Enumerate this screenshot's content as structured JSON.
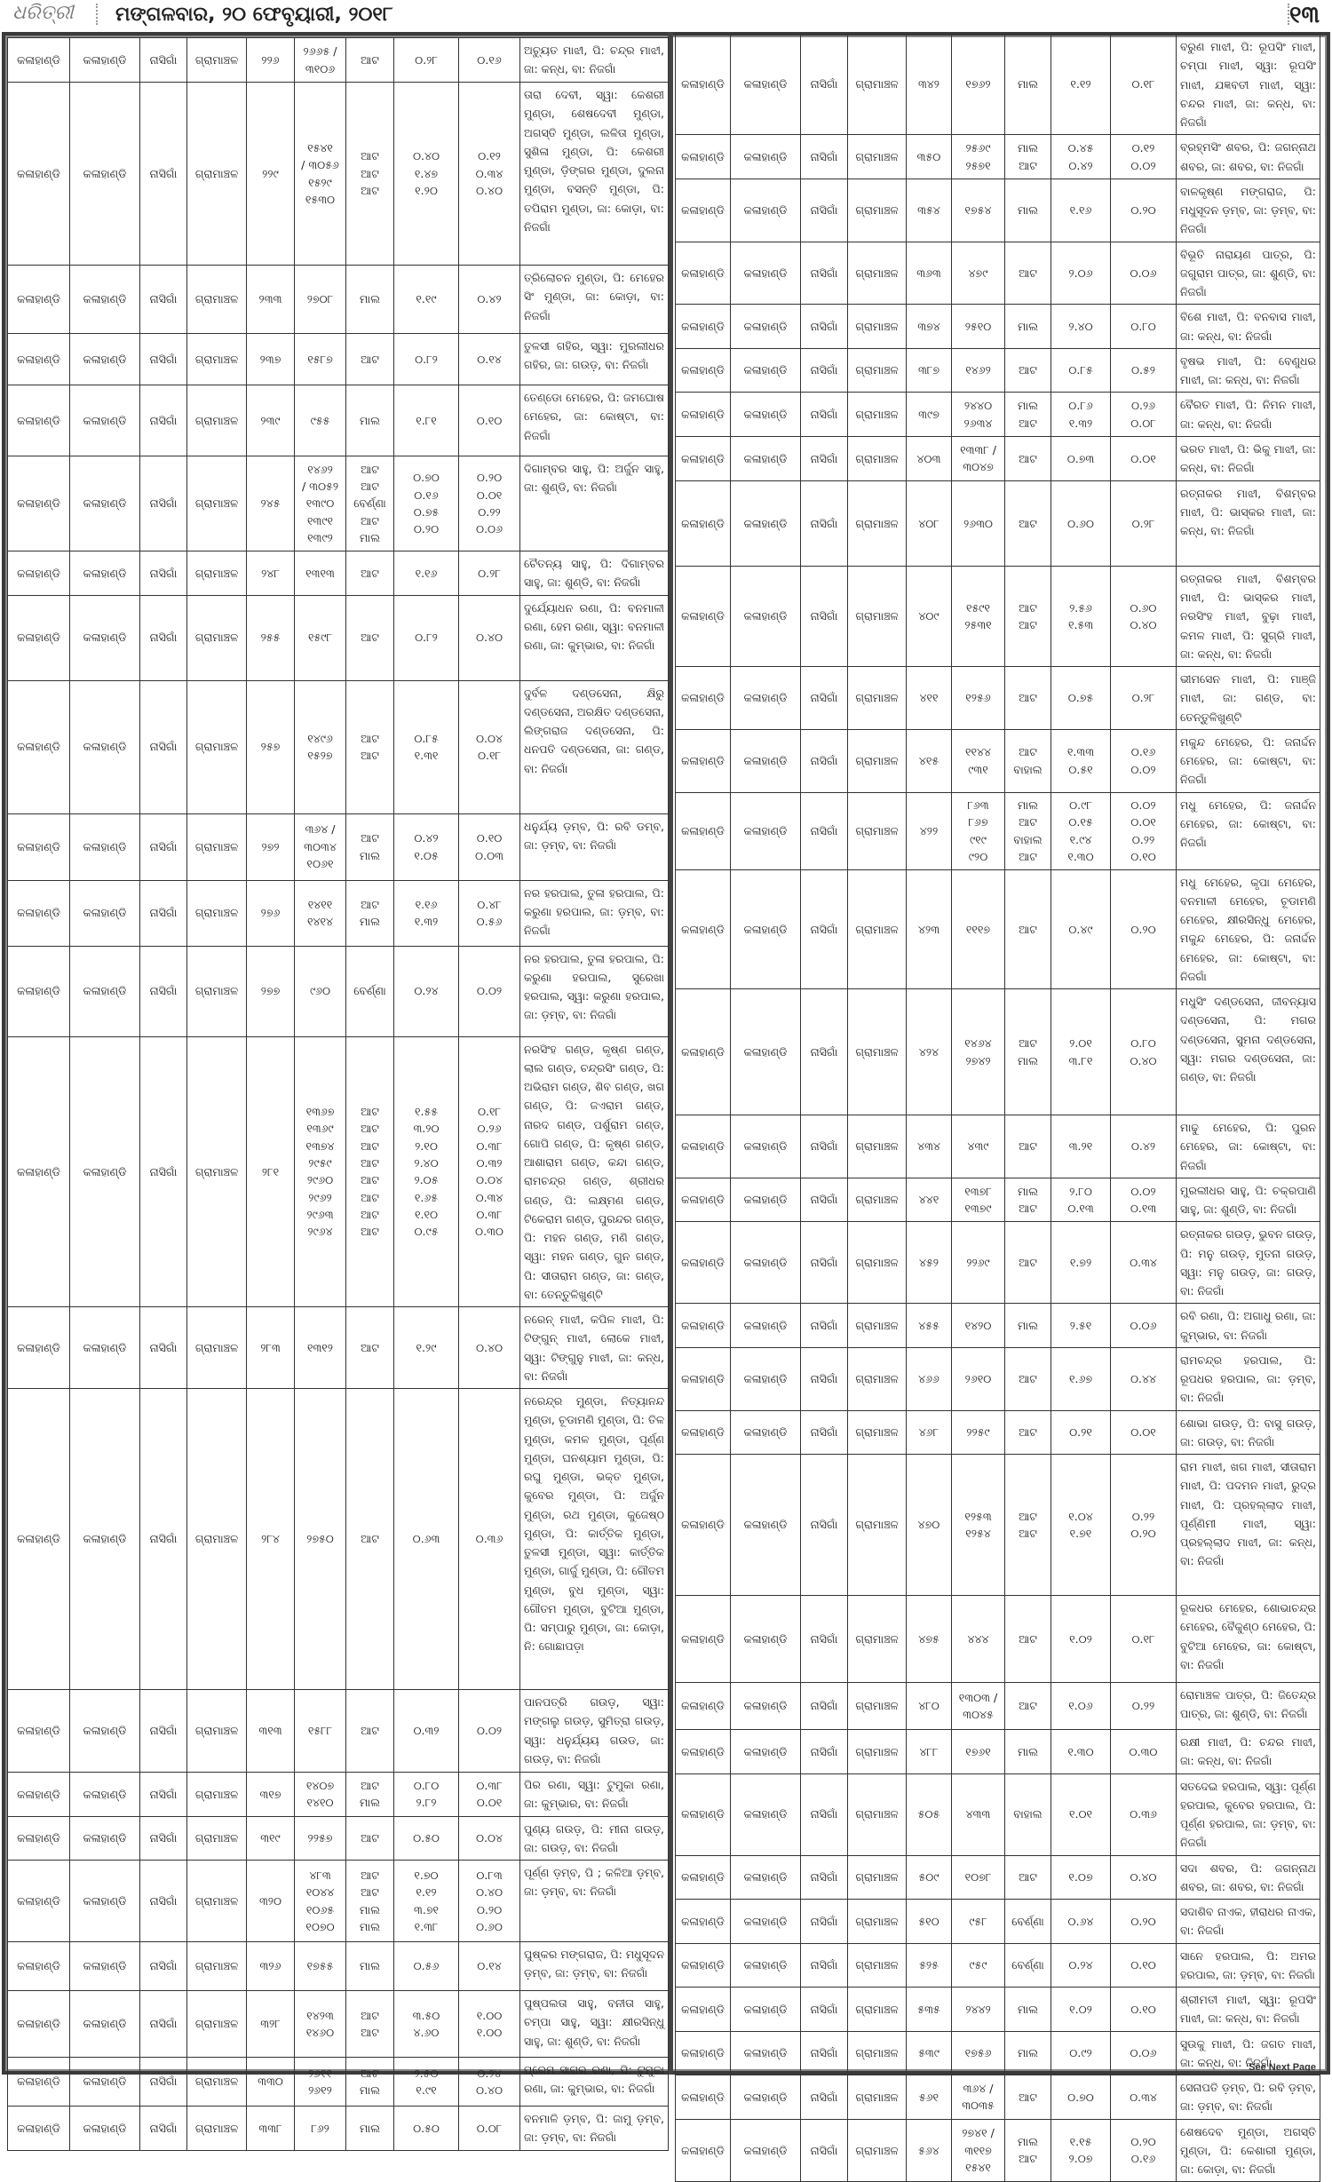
{
  "header": {
    "logo": "ଧରିତ୍ରୀ",
    "date": "ମଙ୍ଗଳବାର, ୨୦ ଫେବୃୟାରୀ, ୨୦୧୮",
    "page_number": "୧୩"
  },
  "footer": {
    "see_next_page": "See Next Page"
  },
  "common": {
    "district": "କଳାହାଣ୍ଡି",
    "district2": "କଳାହାଣ୍ଡି",
    "tehsil": "ନାସିଗାଁ",
    "mouza": "ଗ୍ରାମାଞ୍ଚଳ"
  },
  "left_table": [
    {
      "khata": "୨୨୬",
      "plot": "୨୬୬୫ /\n୩୧୦୬",
      "kisam": "ଆଟ",
      "area": "୦.୨୮",
      "acquired": "୦.୧୬",
      "names": "ଅଚ୍ୟୁତ ମାଝୀ, ପି: ଚନ୍ଦ୍ର ମାଝୀ, ଜା: କନ୍ଧ, ବା: ନିଜଗାଁ"
    },
    {
      "khata": "୨୨୯",
      "plot": "୧୫୪୧\n/ ୩୦୫୬\n୧୫୨୯\n୧୫୩୦",
      "kisam": "ଆଟ\nଆଟ\nଆଟ",
      "area": "୦.୪୦\n୧.୪୭\n୧.୨୦",
      "acquired": "୦.୧୨\n୦.୩୪\n୦.୪୦",
      "names": "ତାରା ଦେବୀ, ସ୍ୱା: କେଶରୀ ମୁଣ୍ଡା, ଶେଷଦେବୀ ମୁଣ୍ଡା, ଅଗସ୍ତି ମୁଣ୍ଡା, ଲଳିତା ମୁଣ୍ଡା, ସୁଶିଳା ମୁଣ୍ଡା, ପି: କେଶରୀ ମୁଣ୍ଡା, ଡ଼ିଙ୍ଗର ମୁଣ୍ଡା, ଦୁଲନା ମୁଣ୍ଡା, ବସନ୍ତି ମୁଣ୍ଡା, ପି: ତପିରାମ ମୁଣ୍ଡା, ଜା: କୋଡ଼ା, ବା: ନିଜଗାଁ"
    },
    {
      "khata": "୨୩୩",
      "plot": "୨୭୦୮",
      "kisam": "ମାଲ",
      "area": "୧.୧୯",
      "acquired": "୦.୪୨",
      "names": "ତ୍ରିଲୋଚନ ମୁଣ୍ଡା, ପି: ମେହେର ସିଂ ମୁଣ୍ଡା, ଜା: କୋଡ଼ା, ବା: ନିଜଗାଁ"
    },
    {
      "khata": "୨୩୭",
      "plot": "୧୫୮୭",
      "kisam": "ଆଟ",
      "area": "୦.୮୨",
      "acquired": "୦.୧୪",
      "names": "ତୁଳସୀ ଗହିର, ସ୍ୱା: ମୁରଲୀଧର ଗହିର, ଜା: ଗଉଡ଼, ବା: ନିଜଗାଁ"
    },
    {
      "khata": "୨୩୯",
      "plot": "୯୫୫",
      "kisam": "ମାଲ",
      "area": "୧.୮୧",
      "acquired": "୦.୧୦",
      "names": "ତେଣ୍ଡୋ ମେହେର, ପି: ଜମଘୋଷ ମେହେର, ଜା: କୋଷ୍ଟା, ବା: ନିଜଗାଁ"
    },
    {
      "khata": "୨୪୫",
      "plot": "୧୪୬୨\n/ ୩୦୫୨\n୧୩୯୦\n୧୩୯୧\n୧୩୯୨",
      "kisam": "ଆଟ\nଆଟ\nବେର୍ଣ୍ଣା\nଆଟ\nମାଲ",
      "area": "୦.୭୦\n୦.୧୬\n୦.୭୫\n୦.୨୦",
      "acquired": "୦.୨୦\n୦.୦୧\n୦.୨୨\n୦.୦୬",
      "names": "ଦିଗାମ୍ବର ସାହୁ, ପି: ଅର୍ଜୁନ ସାହୁ, ଜା: ଶୁଣ୍ଡି, ବା: ନିଜଗାଁ"
    },
    {
      "khata": "୨୪୮",
      "plot": "୧୩୧୩",
      "kisam": "ଆଟ",
      "area": "୧.୧୬",
      "acquired": "୦.୨୮",
      "names": "ଚୈତନ୍ୟ ସାହୁ, ପି: ଦିଗାମ୍ବର ସାହୁ, ଜା: ଶୁଣ୍ଡି, ବା: ନିଜଗାଁ"
    },
    {
      "khata": "୨୫୫",
      "plot": "୧୫୯୮",
      "kisam": "ଆଟ",
      "area": "୦.୮୨",
      "acquired": "୦.୪୦",
      "names": "ଦୁର୍ଯ୍ୟୋଧନ ରଣା, ପି: ବନମାଳୀ ରଣା, ହେମ ରଣା, ସ୍ୱା: ବନମାଳୀ ରଣା, ଜା: କୁମ୍ଭାର, ବା: ନିଜଗାଁ"
    },
    {
      "khata": "୨୫୭",
      "plot": "୧୪୯୬\n୧୫୨୭",
      "kisam": "ଆଟ\nଆଟ",
      "area": "୦.୮୫\n୧.୩୧",
      "acquired": "୦.୦୪\n୦.୧୮",
      "names": "ଦୁର୍ବଳ ଦଣ୍ଡସେନା, କ୍ଷିରୁ ଦଣ୍ଡସେନା, ଅରକ୍ଷିତ ଦଣ୍ଡସେନା, ଲିଙ୍ଗରାଜ ଦଣ୍ଡସେନା, ପି: ଧନପତି ଦଣ୍ଡସେନା, ଜା: ଗଣ୍ଡ, ବା: ନିଜଗାଁ"
    },
    {
      "khata": "୨୭୨",
      "plot": "୩୬୪ /\n୩୦୩୪\n୧୦୬୧",
      "kisam": "ଆଟ\nମାଲ",
      "area": "୦.୪୨\n୧.୦୫",
      "acquired": "୦.୧୦\n୦.୦୩",
      "names": "ଧନୁର୍ଯ୍ୟ ଡ଼ମ୍ବ, ପି: ରବି ଡମ୍ବ, ଜା: ଡ଼ମ୍ବ, ବା: ନିଜଗାଁ"
    },
    {
      "khata": "୨୭୬",
      "plot": "୧୪୧୧\n୧୪୧୪",
      "kisam": "ଆଟ\nମାଲ",
      "area": "୧.୧୬\n୧.୩୨",
      "acquired": "୦.୪୮\n୦.୫୬",
      "names": "ନର ହରପାଲ, ତୁଳା ହରପାଲ, ପି: କରୁଣା ହରପାଲ, ଜା: ଡ଼ମ୍ବ, ବା: ନିଜଗାଁ"
    },
    {
      "khata": "୨୭୭",
      "plot": "୯୬୦",
      "kisam": "ବେର୍ଣ୍ଣା",
      "area": "୦.୨୪",
      "acquired": "୦.୦୨",
      "names": "ନର ହରପାଲ, ତୁଳା ହରପାଲ, ପି: କରୁଣା ହରପାଲ, ସୁରେଖା ହରପାଲ, ସ୍ୱା: କରୁଣା ହରପାଲ, ଜା: ଡ଼ମ୍ବ, ବା: ନିଜଗାଁ"
    },
    {
      "khata": "୨୮୧",
      "plot": "୧୩୬୭\n୧୩୬୯\n୧୩୭୪\n୨୯୫୯\n୨୯୬୦\n୨୯୬୨\n୨୯୬୩\n୨୯୬୪",
      "kisam": "ଆଟ\nଆଟ\nଆଟ\nଆଟ\nଆଟ\nଆଟ\nଆଟ\nଆଟ",
      "area": "୧.୫୫\n୩.୨୦\n୨.୧୦\n୨.୪୦\n୨.୦୫\n୧.୬୫\n୧.୧୦\n୦.୯୫",
      "acquired": "୦.୧୮\n୦.୨୬\n୦.୩୮\n୦.୩୨\n୦.୦୪\n୦.୩୪\n୦.୩୮\n୦.୩୦",
      "names": "ନରସିଂହ ଗଣ୍ଡ, କୃଷ୍ଣ ଗଣ୍ଡ, ଲାଲ ଗଣ୍ଡ, ଚନ୍ଦ୍ରସିଂ ଗଣ୍ଡ, ପି: ଅଭିରାମ ଗଣ୍ଡ, ଶିବ ଗଣ୍ଡ, ଖଗ ଗଣ୍ଡ, ପି: ଜଏରାମ ଗଣ୍ଡ, ନାରଦ ଗଣ୍ଡ, ପର୍ଶୁରାମ ଗଣ୍ଡ, ଗୋପି ଗଣ୍ଡ, ପି: କୃଷ୍ଣ ଗଣ୍ଡ, ଆଶାରାମ ଗଣ୍ଡ, କନ୍ଦା ଗଣ୍ଡ, ରାମଚନ୍ଦ୍ର ଗଣ୍ଡ, ଶ୍ରୀଧର ଗଣ୍ଡ, ପି: ଲକ୍ଷ୍ମଣ ଗଣ୍ଡ, ଟିକେରାମ ଗଣ୍ଡ, ପୁରନ୍ଦର ଗଣ୍ଡ, ପି: ମହନ ଗଣ୍ଡ, ମଣି ଗଣ୍ଡ, ସ୍ୱା: ମହନ ଗଣ୍ଡ, ଗୁନ ଗଣ୍ଡ, ପି: ସୀତାରାମ ଗଣ୍ଡ, ଜା: ଗଣ୍ଡ, ବା: ତେନ୍ତୁଳିଖୁଣ୍ଟି"
    },
    {
      "khata": "୨୮୩",
      "plot": "୧୩୧୨",
      "kisam": "ଆଟ",
      "area": "୧.୨୯",
      "acquired": "୦.୪୦",
      "names": "ନରେନ୍ ମାଝୀ, କପିଳ ମାଝୀ, ପି: ଟିଙ୍ଗୁନ୍ ମାଝୀ, ଲୋକେ ମାଝୀ, ସ୍ୱା: ଟିଙ୍ଗୁନୁ ମାଝୀ, ଜା: କନ୍ଧ, ବା: ନିଜଗାଁ"
    },
    {
      "khata": "୨୮୪",
      "plot": "୨୭୫୦",
      "kisam": "ଆଟ",
      "area": "୦.୬୩",
      "acquired": "୦.୩୬",
      "names": "ନରେନ୍ଦ୍ର ମୁଣ୍ଡା, ନିତ୍ୟାନନ୍ଦ ମୁଣ୍ଡା, ଚୂଡାମଣି ମୁଣ୍ଡା, ପି: ତିଳ ମୁଣ୍ଡା, କମଳ ମୁଣ୍ଡା, ପୂର୍ଣ୍ଣ ମୁଣ୍ଡା, ଘନଶ୍ୟାମ ମୁଣ୍ଡା, ପି: ରଘୁ ମୁଣ୍ଡା, ଭକ୍ତ ମୁଣ୍ଡା, କୁବେର ମୁଣ୍ଡା, ପି: ଅର୍ଜୁନ ମୁଣ୍ଡା, ରଥ ମୁଣ୍ଡା, କୁଜେଷ୍ଠ ମୁଣ୍ଡା, ପି: କାର୍ତ୍ତିକ ମୁଣ୍ଡା, ତୁଳସୀ ମୁଣ୍ଡା, ସ୍ୱା: କାର୍ତ୍ତିକ ମୁଣ୍ଡା, ଗାର୍ଜୁ ମୁଣ୍ଡା, ପି: ଗୌତମ ମୁଣ୍ଡା, ବୁଧ ମୁଣ୍ଡା, ସ୍ୱା: ଗୌତମ ମୁଣ୍ଡା, ବୁଟିଆ ମୁଣ୍ଡା, ପି: ସମ୍ପାରୁ ମୁଣ୍ଡା, ଜା: କୋଡ଼ା, ନି: ଗୋଛାପଡ଼ା"
    },
    {
      "khata": "୩୧୩",
      "plot": "୧୫୮୮",
      "kisam": "ଆଟ",
      "area": "୦.୩୨",
      "acquired": "୦.୦୨",
      "names": "ପାନପତ୍ରି ଗଉଡ଼, ସ୍ୱା: ମଙ୍ଗଲୁ ଗଉଡ଼, ସୁମିତ୍ରା ଗଉଡ଼, ସ୍ୱା: ଧନୁର୍ଯ୍ୟୟ ଗଉଡ, ଜା: ଗଉଡ଼, ବା: ନିଜଗାଁ"
    },
    {
      "khata": "୩୧୭",
      "plot": "୧୪୦୭\n୧୪୧୦",
      "kisam": "ଆଟ\nମାଲ",
      "area": "୦.୮୦\n୨.୮୨",
      "acquired": "୦.୩୮\n୦.୦୧",
      "names": "ପିର ରଣା, ସ୍ୱା: ଟୁମୁକା ରଣା, ଜା: କୁମ୍ଭାର, ବା: ନିଜଗାଁ"
    },
    {
      "khata": "୩୧୯",
      "plot": "୨୨୫୭",
      "kisam": "ଆଟ",
      "area": "୦.୫୦",
      "acquired": "୦.୦୪",
      "names": "ପୁଣ୍ୟ ଗଉଡ଼, ପି: ମୀନା ଗଉଡ଼, ଜା: ଗଉଡ଼, ବା: ନିଜଗାଁ"
    },
    {
      "khata": "୩୨୦",
      "plot": "୪୮୩\n୧୦୪୪\n୧୦୬୫\n୧୦୭୦",
      "kisam": "ଆଟ\nଆଟ\nମାଲ\nମାଲ",
      "area": "୧.୭୦\n୧.୧୨\n୩.୭୧\n୧.୩୮",
      "acquired": "୦.୮୩\n୦.୪୦\n୦.୨୦\n୦.୬୦",
      "names": "ପୂର୍ଣ୍ଣ ଡ଼ମ୍ବ, ପି ; କଳିଆ ଡ଼ମ୍ବ, ଜା: ଡ଼ମ୍ବ, ବା: ନିଜଗାଁ"
    },
    {
      "khata": "୩୨୬",
      "plot": "୧୭୫୫",
      "kisam": "ମାଲ",
      "area": "୦.୫୬",
      "acquired": "୦.୧୪",
      "names": "ପୁଷ୍କର ମଙ୍ଗରାଜ, ପି: ମଧୁସୂଦନ ଡ଼ମ୍ବ, ଜା: ଡ଼ମ୍ବ, ବା: ନିଜଗାଁ"
    },
    {
      "khata": "୩୨୮",
      "plot": "୧୪୨୩\n୧୪୬୦",
      "kisam": "ଆଟ\nଆଟ",
      "area": "୩.୫୦\n୪.୬୦",
      "acquired": "୧.୦୦\n୧.୦୦",
      "names": "ପୁଷ୍ପଲତା ସାହୁ, ବନୀତା ସାହୁ, ଚମ୍ପା ସାହୁ, ସ୍ୱା: କ୍ଷୀରସିନ୍ଧୁ ସାହୁ, ଜା: ଶୁଣ୍ଡି, ବା: ନିଜଗାଁ"
    },
    {
      "khata": "୩୩୦",
      "plot": "୨୬୧୧\n୨୬୧୨",
      "kisam": "ଆଟ\nମାଲ",
      "area": "୨.୫୦\n୧.୯୧",
      "acquired": "୦.୨୪\n୦.୪୦",
      "names": "ପ୍ରେମ ସାଗର ରଣା, ପି: ଟୁମୁକା ରଣା, ଜା: କୁମ୍ଭାର, ବା: ନିଜଗାଁ"
    },
    {
      "khata": "୩୩୮",
      "plot": "୮୬୨",
      "kisam": "ମାଲ",
      "area": "୦.୫୦",
      "acquired": "୦.୦୮",
      "names": "ବନମାଳି ଡ଼ମ୍ବ, ପି: ଜାମୁ ଡ଼ମ୍ବ, ଜା: ଡ଼ମ୍ବ, ବା: ନିଜଗାଁ"
    }
  ],
  "right_table": [
    {
      "khata": "୩୪୨",
      "plot": "୧୭୬୨",
      "kisam": "ମାଲ",
      "area": "୧.୧୨",
      "acquired": "୦.୧୮",
      "names": "ବରୁଣ ମାଝୀ, ପି: ରୂପସିଂ ମାଝୀ, ଚମ୍ପା ମାଝୀ, ସ୍ୱା: ରୂପସିଂ ମାଝୀ, ଯଜ୍ଞବତୀ ମାଝୀ, ସ୍ୱା: ଚନ୍ଦର ମାଝୀ, ଜା: କନ୍ଧ, ବା: ନିଜଗାଁ"
    },
    {
      "khata": "୩୫୦",
      "plot": "୨୫୬୯\n୨୫୭୧",
      "kisam": "ମାଲ\nଆଟ",
      "area": "୦.୪୫\n୦.୪୨",
      "acquired": "୦.୧୨\n୦.୦୨",
      "names": "ବ୍ରହ୍ମସିଂ ଶବର, ପି: ଜଗନ୍ନାଥ ଶବର, ଜା: ଶବର, ବା: ନିଜଗାଁ"
    },
    {
      "khata": "୩୫୪",
      "plot": "୧୭୫୪",
      "kisam": "ମାଲ",
      "area": "୧.୧୬",
      "acquired": "୦.୨୦",
      "names": "ବାଳକୃଷ୍ଣ ମଙ୍ଗରାଜ, ପି: ମଧୁସୂଦନ ଡ଼ମ୍ବ, ଜା: ଡ଼ମ୍ବ, ବା: ନିଜଗାଁ"
    },
    {
      "khata": "୩୬୩",
      "plot": "୪୭୯",
      "kisam": "ଆଟ",
      "area": "୨.୦୬",
      "acquired": "୦.୦୬",
      "names": "ବିଭୂତି ନାରାୟଣ ପାତ୍ର, ପି: ଜଗୁରାମ ପାତ୍ର, ଜା: ଶୁଣ୍ଡି, ବା: ନିଜଗାଁ"
    },
    {
      "khata": "୩୭୪",
      "plot": "୨୫୧୦",
      "kisam": "ମାଲ",
      "area": "୨.୪୦",
      "acquired": "୦.୮୦",
      "names": "ବିଶେ ମାଝୀ, ପି: ବନବାସ ମାଝୀ, ଜା: କନ୍ଧ, ବା: ନିଜଗାଁ"
    },
    {
      "khata": "୩୮୭",
      "plot": "୧୪୬୨",
      "kisam": "ଆଟ",
      "area": "୦.୮୫",
      "acquired": "୦.୫୨",
      "names": "ବୃଷଭ ମାଝୀ, ପି: ବେଣୁଧର ମାଝୀ, ଜା: କନ୍ଧ, ବା: ନିଜଗାଁ"
    },
    {
      "khata": "୩୯୭",
      "plot": "୨୪୪୦\n୨୬୩୪",
      "kisam": "ମାଲ\nଆଟ",
      "area": "୦.୮୬\n୧.୩୨",
      "acquired": "୦.୨୬\n୦.୦୮",
      "names": "ବୈରତ ମାଝୀ, ପି: ନିମନ ମାଝୀ, ଜା: କନ୍ଧ, ବା: ନିଜଗାଁ"
    },
    {
      "khata": "୪୦୩",
      "plot": "୧୩୩୮ /\n୩୦୪୭",
      "kisam": "ଆଟ",
      "area": "୦.୭୩",
      "acquired": "୦.୦୧",
      "names": "ଭରତ ମାଝୀ, ପି: ଭିକୁ ମାଝୀ, ଜା: କନ୍ଧ, ବା: ନିଜଗାଁ"
    },
    {
      "khata": "୪୦୮",
      "plot": "୨୬୩୦",
      "kisam": "ଆଟ",
      "area": "୦.୬୦",
      "acquired": "୦.୨୮",
      "names": "ରତ୍ନାକର ମାଝୀ, ବିଶମ୍ବର ମାଝୀ, ପି: ଭାସ୍କର ମାଝୀ, ଜା: କନ୍ଧ, ବା: ନିଜଗାଁ"
    },
    {
      "khata": "୪୦୯",
      "plot": "୧୫୯୧\n୨୫୩୧",
      "kisam": "ଆଟ\nଆଟ",
      "area": "୨.୫୬\n୧.୫୩",
      "acquired": "୦.୬୦\n୦.୪୦",
      "names": "ରତ୍ନାକର ମାଝୀ, ବିଶମ୍ବର ମାଝୀ, ପି: ଭାସ୍କର ମାଝୀ, ନରସିଂହ ମାଝୀ, ବୁଢ଼ା ମାଝୀ, କମଳ ମାଝୀ, ପି: ସୁଗ୍ରି ମାଝୀ, ଜା: କନ୍ଧ, ବା: ନିଜଗାଁ"
    },
    {
      "khata": "୪୧୧",
      "plot": "୧୨୫୬",
      "kisam": "ଆଟ",
      "area": "୦.୭୫",
      "acquired": "୦.୨୮",
      "names": "ଭୀମସେନ ମାଝୀ, ପି: ମାଞ୍ଜି ମାଝୀ, ଜା: ଗଣ୍ଡ, ବା: ତେନ୍ତୁଳିଖୁଣ୍ଟି"
    },
    {
      "khata": "୪୧୫",
      "plot": "୧୧୪୪\n୯୩୧",
      "kisam": "ଆଟ\nବାହାଲ",
      "area": "୧.୩୩\n୦.୫୧",
      "acquired": "୦.୧୬\n୦.୦୨",
      "names": "ମକୁନ୍ଦ ମେହେର, ପି: ଜନାର୍ଦ୍ଦନ ମେହେର, ଜା: କୋଷ୍ଟା, ବା: ନିଜଗାଁ"
    },
    {
      "khata": "୪୨୨",
      "plot": "୮୬୩\n୮୬୭\n୯୧୯\n୯୨୦",
      "kisam": "ମାଲ\nଆଟ\nବାହାଲ\nଆଟ",
      "area": "୦.୯୮\n୦.୧୫\n୧.୯୪\n୧.୩୦",
      "acquired": "୦.୦୨\n୦.୦୧\n୦.୨୨\n୦.୧୦",
      "names": "ମଧୁ ମେହେର, ପି: ଜନାର୍ଦ୍ଦନ ମେହେର, ଜା: କୋଷ୍ଟା, ବା: ନିଜଗାଁ"
    },
    {
      "khata": "୪୨୩",
      "plot": "୧୧୧୭",
      "kisam": "ଆଟ",
      "area": "୦.୪୯",
      "acquired": "୦.୨୦",
      "names": "ମଧୁ ମେହେର, କୃପା ମେହେର, ବନମାଳୀ ମେହେର, ଚୂଡାମଣି ମେହେର, କ୍ଷୀରସିନ୍ଧୁ ମେହେର, ମକୁନ୍ଦ ମେହେର, ପି: ଜନାର୍ଦ୍ଦନ ମେହେର, ଜା: କୋଷ୍ଟା, ବା: ନିଜଗାଁ"
    },
    {
      "khata": "୪୨୪",
      "plot": "୧୪୬୪\n୨୭୪୨",
      "kisam": "ଆଟ\nମାଲ",
      "area": "୨.୦୧\n୩.୮୧",
      "acquired": "୦.୮୦\n୦.୪୦",
      "names": "ମଧୁସିଂ ଦଣ୍ଡସେନା, ଜୀବନ୍ୟାସ ଦଣ୍ଡସେନା, ପି: ମଗର ଦଣ୍ଡସେନା, ସୁମନା ଦଣ୍ଡସେନା, ସ୍ୱା: ମଗର ଦଣ୍ଡସେନା, ଜା: ଗଣ୍ଡ, ବା: ନିଜଗାଁ"
    },
    {
      "khata": "୪୩୪",
      "plot": "୪୩୯",
      "kisam": "ଆଟ",
      "area": "୩.୨୧",
      "acquired": "୦.୪୨",
      "names": "ମାଢୁ ମେହେର, ପି: ପୁରନ ମେହେର, ଜା: କୋଷ୍ଟା, ବା: ନିଜଗାଁ"
    },
    {
      "khata": "୪୪୧",
      "plot": "୧୩୭୮\n୧୩୭୯",
      "kisam": "ମାଲ\nଆଟ",
      "area": "୨.୮୦\n୦.୧୩",
      "acquired": "୦.୦୨\n୦.୧୩",
      "names": "ମୁରଲୀଧର ସାହୁ, ପି: ଚକ୍ରପାଣି ସାହୁ, ଜା: ଶୁଣ୍ଡି, ବା: ନିଜଗାଁ"
    },
    {
      "khata": "୪୫୨",
      "plot": "୨୨୬୯",
      "kisam": "ଆଟ",
      "area": "୧.୭୨",
      "acquired": "୦.୩୪",
      "names": "ରତ୍ନାକର ଗଉଡ଼, ଭୁବନ ଗଉଡ଼, ପି: ମନୁ ଗଉଡ଼, ମୁତନା ଗଉଡ଼, ସ୍ୱା: ମନୁ ଗଉଡ଼, ଜା: ଗଉଡ଼, ବା: ନିଜଗାଁ"
    },
    {
      "khata": "୪୫୫",
      "plot": "୧୪୨୦",
      "kisam": "ମାଲ",
      "area": "୨.୫୧",
      "acquired": "୦.୦୬",
      "names": "ରବି ରଣା, ପି: ଅଗାଧୁ ରଣା, ଜା: କୁମ୍ଭାର, ବା: ନିଜଗାଁ"
    },
    {
      "khata": "୪୬୬",
      "plot": "୨୬୧୦",
      "kisam": "ଆଟ",
      "area": "୧.୬୭",
      "acquired": "୦.୪୪",
      "names": "ରାମଚନ୍ଦ୍ର ହରପାଲ, ପି: ରୂପଧର ହରପାଲ, ଜା: ଡ଼ମ୍ବ, ବା: ନିଜଗାଁ"
    },
    {
      "khata": "୪୬୮",
      "plot": "୨୨୫୯",
      "kisam": "ଆଟ",
      "area": "୦.୨୧",
      "acquired": "୦.୦୧",
      "names": "ଶୋଭା ଗଉଡ଼, ପି: ବାସୁ ଗଉଡ଼, ଜା: ଗଉଡ଼, ବା: ନିଜଗାଁ"
    },
    {
      "khata": "୪୭୦",
      "plot": "୧୨୫୩\n୧୨୫୪",
      "kisam": "ଆଟ\nଆଟ",
      "area": "୧.୦୪\n୧.୭୧",
      "acquired": "୦.୨୨\n୦.୨୦",
      "names": "ରାମ ମାଝୀ, ଖଗ ମାଝୀ, ସୀତାରାମ ମାଝୀ, ପି: ପଦମନ ମାଝୀ, ରୁଦ୍ର ମାଝୀ, ପି: ପ୍ରହଲ୍ଲାଦ ମାଝୀ, ପୂର୍ଣ୍ଣିମୀ ମାଝୀ, ସ୍ୱା: ପ୍ରହଲ୍ଲାଦ ମାଝୀ, ଜା: କନ୍ଧ, ବା: ନିଜଗାଁ"
    },
    {
      "khata": "୪୭୫",
      "plot": "୪୪୪",
      "kisam": "ଆଟ",
      "area": "୧.୦୨",
      "acquired": "୦.୧୮",
      "names": "ରୂକଧର ମେହେର, ଶୋଭାଚନ୍ଦ୍ର ମେହେର, ବୈକୁଣ୍ଠ ମେହେର, ପି: ବୁଟିଆ ମେହେର, ଜା: କୋଷ୍ଟା, ବା: ନିଜଗାଁ"
    },
    {
      "khata": "୪୮୦",
      "plot": "୧୩୦୩ /\n୩୦୪୫",
      "kisam": "ଆଟ",
      "area": "୧.୦୬",
      "acquired": "୦.୨୨",
      "names": "ରୋମାଞ୍ଚଳ ପାତ୍ର, ପି: ଜିତେନ୍ଦ୍ର ପାତ୍ର, ଜା: ଶୁଣ୍ଡି, ବା: ନିଜଗାଁ"
    },
    {
      "khata": "୪୮୮",
      "plot": "୧୭୬୧",
      "kisam": "ମାଲ",
      "area": "୧.୩୦",
      "acquired": "୦.୩୦",
      "names": "ରକ୍ଷୀ ମାଝୀ, ପି: ଚନ୍ଦର ମାଝୀ, ଜା: କନ୍ଧ, ବା: ନିଜଗାଁ"
    },
    {
      "khata": "୫୦୫",
      "plot": "୪୩୩",
      "kisam": "ବାହାଲ",
      "area": "୧.୦୧",
      "acquired": "୦.୩୬",
      "names": "ସତଦେଇ ହରପାଲ, ସ୍ୱା: ପୂର୍ଣ୍ଣ ହରପାଲ, କୁବେର ହରପାଲ, ପି: ପୂର୍ଣ୍ଣ ହରପାଲ, ଜା: ଡ଼ମ୍ବ, ବା: ନିଜଗାଁ"
    },
    {
      "khata": "୫୦୯",
      "plot": "୧୦୭୮",
      "kisam": "ଆଟ",
      "area": "୧.୦୭",
      "acquired": "୦.୪୦",
      "names": "ସଦା ଶବର, ପି: ଜଗନ୍ନାଥ ଶବର, ଜା: ଶବର, ବା: ନିଜଗାଁ"
    },
    {
      "khata": "୫୧୦",
      "plot": "୯୫୮",
      "kisam": "ବେର୍ଣ୍ଣା",
      "area": "୦.୬୪",
      "acquired": "୦.୨୦",
      "names": "ସଦାଶିବ ନାଏକ, ହୀରାଧର ନାଏକ, ବା: ନିଜଗାଁ"
    },
    {
      "khata": "୫୨୫",
      "plot": "୯୫୯",
      "kisam": "ବେର୍ଣ୍ଣା",
      "area": "୦.୨୪",
      "acquired": "୦.୧୦",
      "names": "ସାନେ ହରପାଲ, ପି: ଅମର ହରପାଲ, ଜା: ଡ଼ମ୍ବ, ବା: ନିଜଗାଁ"
    },
    {
      "khata": "୫୩୫",
      "plot": "୨୪୪୨",
      "kisam": "ମାଲ",
      "area": "୧.୦୨",
      "acquired": "୦.୧୦",
      "names": "ଶ୍ରୀମତୀ ମାଝୀ, ସ୍ୱା: ରୂପସିଂ ମାଝୀ, ଜା: କନ୍ଧ, ବା: ନିଜଗାଁ"
    },
    {
      "khata": "୫୩୯",
      "plot": "୧୭୫୬",
      "kisam": "ମାଲ",
      "area": "୦.୯୨",
      "acquired": "୦.୦୬",
      "names": "ସୁଉକୁ ମାଝୀ, ପି: ଜଗତ ମାଝୀ, ଜା: କନ୍ଧ, ବା: ନିଜଗାଁ"
    },
    {
      "khata": "୫୬୧",
      "plot": "୩୬୪ /\n୩୦୩୫",
      "kisam": "ଆଟ",
      "area": "୦.୭୦",
      "acquired": "୦.୩୪",
      "names": "ସେନାପତି ଡ଼ମ୍ବ, ପି: ରବି ଡ଼ମ୍ବ, ଜା: ଡ଼ମ୍ବ, ବା: ନିଜଗାଁ"
    },
    {
      "khata": "୫୬୪",
      "plot": "୨୭୪୧ /\n୩୧୧୭\n୧୫୪୧",
      "kisam": "ମାଲ\nଆଟ",
      "area": "୧.୧୫\n୨.୦୭",
      "acquired": "୦.୨୦\n୦.୧୬",
      "names": "ଶେଷଦେବ ମୁଣ୍ଡା, ଅଗସ୍ତି ମୁଣ୍ଡା, ପି: କେଶାରୀ ମୁଣ୍ଡା, ଜା: କୋଡ଼ା, ବା: ନିଜଗାଁ"
    }
  ]
}
